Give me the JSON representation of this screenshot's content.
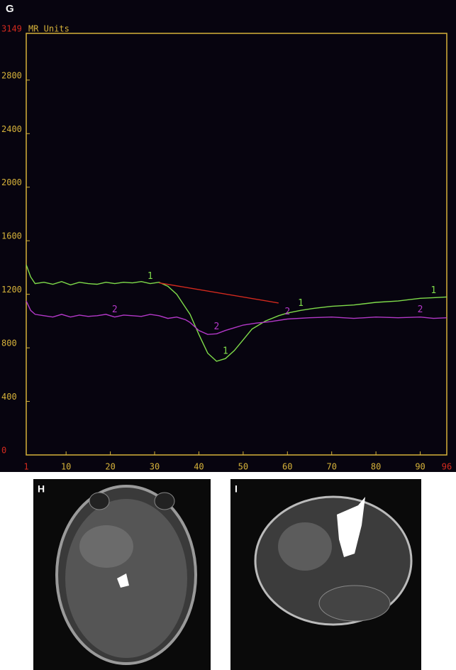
{
  "chart_data": {
    "type": "line",
    "panel_label": "G",
    "ylabel": "MR Units",
    "xlim": [
      1,
      96
    ],
    "ylim": [
      0,
      3149
    ],
    "xticks": [
      1,
      10,
      20,
      30,
      40,
      50,
      60,
      70,
      80,
      90,
      96
    ],
    "yticks": [
      0,
      400,
      800,
      1200,
      1600,
      2000,
      2400,
      2800
    ],
    "series": [
      {
        "name": "1",
        "color": "#7fdc4a",
        "x": [
          1,
          2,
          3,
          5,
          7,
          9,
          11,
          13,
          15,
          17,
          19,
          21,
          23,
          25,
          27,
          29,
          31,
          33,
          35,
          37,
          38,
          40,
          42,
          44,
          46,
          48,
          50,
          52,
          55,
          58,
          60,
          63,
          66,
          70,
          75,
          80,
          85,
          90,
          93,
          96
        ],
        "values": [
          1420,
          1330,
          1280,
          1290,
          1275,
          1295,
          1270,
          1290,
          1280,
          1275,
          1290,
          1280,
          1290,
          1285,
          1295,
          1280,
          1290,
          1260,
          1200,
          1100,
          1050,
          900,
          760,
          700,
          720,
          780,
          860,
          940,
          1000,
          1040,
          1060,
          1080,
          1095,
          1110,
          1120,
          1140,
          1150,
          1170,
          1175,
          1180
        ]
      },
      {
        "name": "2",
        "color": "#b338c8",
        "x": [
          1,
          2,
          3,
          5,
          7,
          9,
          11,
          13,
          15,
          17,
          19,
          21,
          23,
          25,
          27,
          29,
          31,
          33,
          35,
          37,
          38,
          40,
          42,
          44,
          46,
          48,
          50,
          53,
          56,
          60,
          65,
          70,
          75,
          80,
          85,
          90,
          93,
          96
        ],
        "values": [
          1150,
          1080,
          1050,
          1040,
          1030,
          1050,
          1030,
          1045,
          1035,
          1040,
          1050,
          1030,
          1045,
          1040,
          1035,
          1050,
          1040,
          1020,
          1030,
          1010,
          990,
          930,
          900,
          905,
          930,
          950,
          970,
          985,
          995,
          1015,
          1025,
          1030,
          1020,
          1030,
          1025,
          1030,
          1020,
          1025
        ]
      },
      {
        "color": "#d42a1e",
        "x": [
          31,
          58
        ],
        "values": [
          1285,
          1135
        ]
      }
    ]
  },
  "panels": {
    "H": {
      "label": "H"
    },
    "I": {
      "label": "I"
    }
  }
}
